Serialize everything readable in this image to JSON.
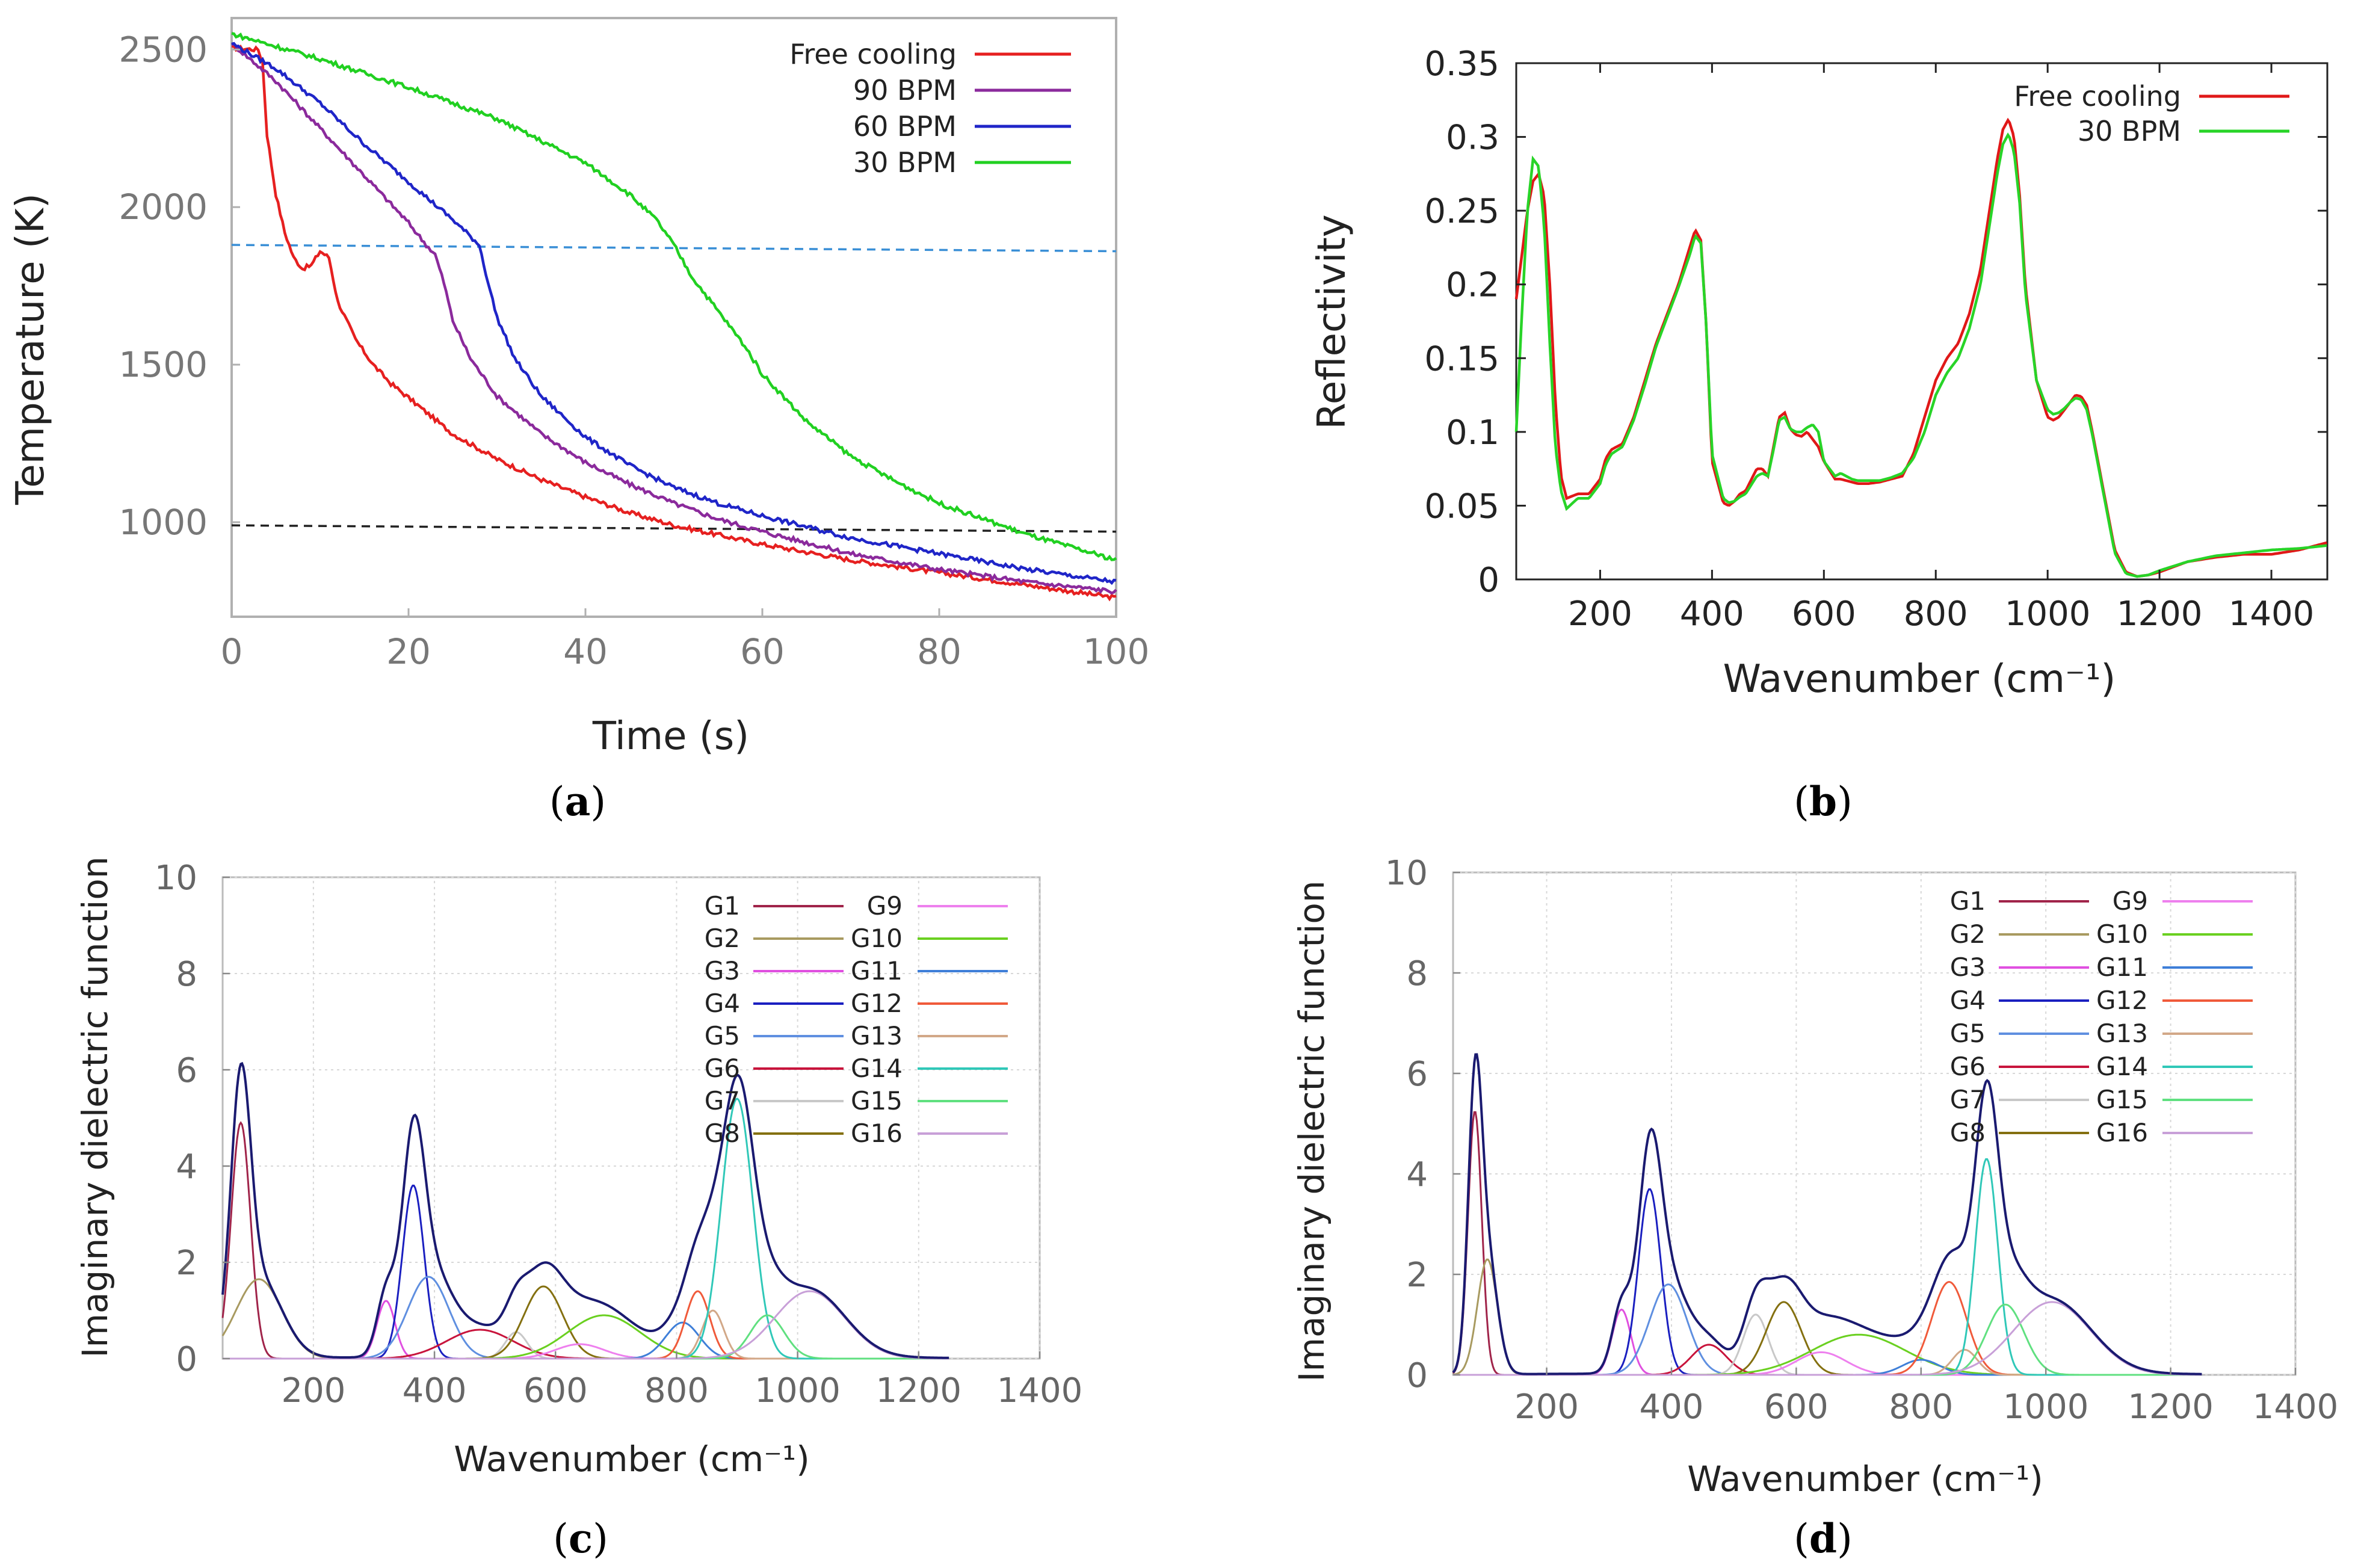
{
  "charts": {
    "a": {
      "caption_letter": "a",
      "title": "",
      "xlabel": "Time (s)",
      "ylabel": "Temperature (K)",
      "xticks": [
        "0",
        "20",
        "40",
        "60",
        "80",
        "100"
      ],
      "yticks": [
        "1000",
        "1500",
        "2000",
        "2500"
      ],
      "legend": [
        "Free cooling",
        "90 BPM",
        "60 BPM",
        "30 BPM"
      ]
    },
    "b": {
      "caption_letter": "b",
      "xlabel": "Wavenumber (cm⁻¹)",
      "ylabel": "Reflectivity",
      "xticks": [
        "200",
        "400",
        "600",
        "800",
        "1000",
        "1200",
        "1400"
      ],
      "yticks": [
        "0",
        "0.05",
        "0.1",
        "0.15",
        "0.2",
        "0.25",
        "0.3",
        "0.35"
      ],
      "legend": [
        "Free cooling",
        "30 BPM"
      ]
    },
    "c": {
      "caption_letter": "c",
      "xlabel": "Wavenumber (cm⁻¹)",
      "ylabel": "Imaginary dielectric function",
      "xticks": [
        "200",
        "400",
        "600",
        "800",
        "1000",
        "1200",
        "1400"
      ],
      "yticks": [
        "0",
        "2",
        "4",
        "6",
        "8",
        "10"
      ],
      "legend": [
        "G1",
        "G2",
        "G3",
        "G4",
        "G5",
        "G6",
        "G7",
        "G8",
        "G9",
        "G10",
        "G11",
        "G12",
        "G13",
        "G14",
        "G15",
        "G16"
      ]
    },
    "d": {
      "caption_letter": "d",
      "xlabel": "Wavenumber (cm⁻¹)",
      "ylabel": "Imaginary dielectric function",
      "xticks": [
        "200",
        "400",
        "600",
        "800",
        "1000",
        "1200",
        "1400"
      ],
      "yticks": [
        "0",
        "2",
        "4",
        "6",
        "8",
        "10"
      ],
      "legend": [
        "G1",
        "G2",
        "G3",
        "G4",
        "G5",
        "G6",
        "G7",
        "G8",
        "G9",
        "G10",
        "G11",
        "G12",
        "G13",
        "G14",
        "G15",
        "G16"
      ]
    }
  },
  "chart_data": [
    {
      "id": "a",
      "type": "line",
      "title": "",
      "xlabel": "Time (s)",
      "ylabel": "Temperature (K)",
      "xlim": [
        0,
        100
      ],
      "ylim": [
        700,
        2600
      ],
      "grid": false,
      "legend_position": "top-right",
      "series": [
        {
          "name": "Free cooling",
          "color": "#e62020",
          "x": [
            0,
            3,
            3.5,
            4,
            5,
            6,
            7,
            8,
            9,
            10,
            11,
            12,
            14,
            16,
            18,
            20,
            25,
            30,
            35,
            40,
            45,
            50,
            60,
            70,
            80,
            90,
            100
          ],
          "y": [
            2505,
            2500,
            2460,
            2230,
            2040,
            1920,
            1840,
            1805,
            1815,
            1860,
            1840,
            1700,
            1580,
            1500,
            1440,
            1395,
            1280,
            1200,
            1135,
            1080,
            1030,
            990,
            930,
            880,
            840,
            800,
            760
          ]
        },
        {
          "name": "90 BPM",
          "color": "#8b2a9c",
          "x": [
            0,
            5,
            10,
            15,
            20,
            22,
            23,
            24,
            25,
            27,
            30,
            35,
            40,
            45,
            50,
            55,
            60,
            70,
            80,
            90,
            100
          ],
          "y": [
            2520,
            2400,
            2250,
            2100,
            1950,
            1880,
            1850,
            1760,
            1640,
            1520,
            1400,
            1280,
            1190,
            1120,
            1060,
            1010,
            970,
            900,
            850,
            810,
            780
          ]
        },
        {
          "name": "60 BPM",
          "color": "#1f25c8",
          "x": [
            0,
            5,
            10,
            15,
            20,
            25,
            28,
            29,
            30,
            32,
            35,
            40,
            45,
            50,
            55,
            60,
            70,
            80,
            90,
            100
          ],
          "y": [
            2520,
            2440,
            2330,
            2200,
            2080,
            1960,
            1880,
            1760,
            1650,
            1520,
            1400,
            1270,
            1180,
            1110,
            1060,
            1020,
            950,
            900,
            850,
            810
          ]
        },
        {
          "name": "30 BPM",
          "color": "#21d021",
          "x": [
            0,
            10,
            20,
            30,
            40,
            45,
            48,
            50,
            52,
            55,
            58,
            60,
            65,
            70,
            75,
            80,
            90,
            100
          ],
          "y": [
            2550,
            2470,
            2380,
            2280,
            2140,
            2040,
            1960,
            1880,
            1780,
            1670,
            1560,
            1470,
            1320,
            1210,
            1130,
            1060,
            960,
            880
          ]
        }
      ],
      "reference_lines": [
        {
          "name": "upper dashed",
          "color": "#3a8fd6",
          "y_start": 1880,
          "y_end": 1860
        },
        {
          "name": "lower dashed",
          "color": "#222222",
          "y_start": 990,
          "y_end": 970
        }
      ]
    },
    {
      "id": "b",
      "type": "line",
      "xlabel": "Wavenumber (cm⁻¹)",
      "ylabel": "Reflectivity",
      "xlim": [
        50,
        1500
      ],
      "ylim": [
        0,
        0.35
      ],
      "grid": false,
      "legend_position": "top-right",
      "series": [
        {
          "name": "Free cooling",
          "color": "#e01818",
          "x": [
            50,
            60,
            70,
            80,
            90,
            100,
            110,
            120,
            130,
            140,
            160,
            180,
            200,
            210,
            220,
            240,
            260,
            280,
            300,
            320,
            340,
            360,
            370,
            380,
            390,
            400,
            420,
            430,
            440,
            450,
            460,
            480,
            490,
            500,
            510,
            520,
            530,
            540,
            550,
            560,
            570,
            580,
            590,
            600,
            620,
            630,
            640,
            650,
            660,
            680,
            700,
            720,
            740,
            760,
            780,
            800,
            820,
            840,
            860,
            880,
            900,
            910,
            920,
            930,
            940,
            950,
            960,
            980,
            1000,
            1010,
            1020,
            1030,
            1040,
            1050,
            1060,
            1070,
            1080,
            1100,
            1120,
            1140,
            1160,
            1180,
            1200,
            1250,
            1300,
            1350,
            1400,
            1450,
            1500
          ],
          "y": [
            0.19,
            0.22,
            0.25,
            0.27,
            0.275,
            0.26,
            0.2,
            0.12,
            0.07,
            0.055,
            0.058,
            0.058,
            0.068,
            0.082,
            0.088,
            0.092,
            0.11,
            0.135,
            0.16,
            0.18,
            0.2,
            0.225,
            0.237,
            0.23,
            0.17,
            0.08,
            0.052,
            0.05,
            0.053,
            0.058,
            0.06,
            0.075,
            0.075,
            0.07,
            0.09,
            0.11,
            0.113,
            0.102,
            0.098,
            0.097,
            0.1,
            0.095,
            0.09,
            0.08,
            0.068,
            0.068,
            0.067,
            0.066,
            0.065,
            0.065,
            0.066,
            0.068,
            0.07,
            0.085,
            0.11,
            0.135,
            0.15,
            0.16,
            0.18,
            0.21,
            0.26,
            0.285,
            0.305,
            0.312,
            0.3,
            0.26,
            0.2,
            0.135,
            0.11,
            0.108,
            0.11,
            0.115,
            0.12,
            0.125,
            0.124,
            0.118,
            0.1,
            0.06,
            0.02,
            0.005,
            0.002,
            0.003,
            0.005,
            0.012,
            0.015,
            0.017,
            0.017,
            0.02,
            0.025
          ]
        },
        {
          "name": "30 BPM",
          "color": "#28d428",
          "x": [
            50,
            60,
            70,
            80,
            90,
            100,
            110,
            120,
            130,
            140,
            160,
            180,
            200,
            210,
            220,
            240,
            260,
            280,
            300,
            320,
            340,
            360,
            370,
            380,
            390,
            400,
            420,
            430,
            440,
            450,
            460,
            480,
            490,
            500,
            510,
            520,
            530,
            540,
            550,
            560,
            570,
            580,
            590,
            600,
            620,
            630,
            640,
            650,
            660,
            680,
            700,
            720,
            740,
            760,
            780,
            800,
            820,
            840,
            860,
            880,
            900,
            910,
            920,
            930,
            940,
            950,
            960,
            980,
            1000,
            1010,
            1020,
            1030,
            1040,
            1050,
            1060,
            1070,
            1080,
            1100,
            1120,
            1140,
            1160,
            1180,
            1200,
            1250,
            1300,
            1350,
            1400,
            1450,
            1500
          ],
          "y": [
            0.1,
            0.18,
            0.25,
            0.285,
            0.28,
            0.24,
            0.16,
            0.09,
            0.06,
            0.048,
            0.055,
            0.055,
            0.065,
            0.078,
            0.085,
            0.09,
            0.108,
            0.132,
            0.158,
            0.178,
            0.198,
            0.22,
            0.233,
            0.228,
            0.17,
            0.085,
            0.055,
            0.052,
            0.053,
            0.056,
            0.058,
            0.07,
            0.072,
            0.07,
            0.088,
            0.108,
            0.11,
            0.102,
            0.1,
            0.1,
            0.103,
            0.105,
            0.1,
            0.08,
            0.07,
            0.072,
            0.07,
            0.068,
            0.067,
            0.067,
            0.067,
            0.069,
            0.072,
            0.082,
            0.1,
            0.125,
            0.14,
            0.15,
            0.17,
            0.2,
            0.25,
            0.275,
            0.295,
            0.302,
            0.29,
            0.255,
            0.195,
            0.135,
            0.115,
            0.112,
            0.113,
            0.116,
            0.12,
            0.123,
            0.122,
            0.115,
            0.098,
            0.058,
            0.018,
            0.004,
            0.002,
            0.003,
            0.006,
            0.012,
            0.016,
            0.018,
            0.02,
            0.021,
            0.023
          ]
        }
      ]
    },
    {
      "id": "c",
      "type": "line",
      "xlabel": "Wavenumber (cm⁻¹)",
      "ylabel": "Imaginary dielectric function",
      "xlim": [
        50,
        1400
      ],
      "ylim": [
        0,
        10
      ],
      "grid": true,
      "legend_position": "top-right",
      "components": [
        {
          "name": "G1",
          "center": 80,
          "amp": 4.9,
          "sigma": 16,
          "color": "#a0244a"
        },
        {
          "name": "G2",
          "center": 110,
          "amp": 1.65,
          "sigma": 38,
          "color": "#a89a60"
        },
        {
          "name": "G3",
          "center": 320,
          "amp": 1.2,
          "sigma": 15,
          "color": "#e050e0"
        },
        {
          "name": "G4",
          "center": 365,
          "amp": 3.6,
          "sigma": 18,
          "color": "#1a1fc0"
        },
        {
          "name": "G5",
          "center": 390,
          "amp": 1.7,
          "sigma": 34,
          "color": "#5f8fe0"
        },
        {
          "name": "G6",
          "center": 475,
          "amp": 0.6,
          "sigma": 55,
          "color": "#c8143c"
        },
        {
          "name": "G7",
          "center": 535,
          "amp": 0.55,
          "sigma": 18,
          "color": "#c8c8c8"
        },
        {
          "name": "G8",
          "center": 580,
          "amp": 1.5,
          "sigma": 32,
          "color": "#847010"
        },
        {
          "name": "G9",
          "center": 640,
          "amp": 0.3,
          "sigma": 40,
          "color": "#ee80ee"
        },
        {
          "name": "G10",
          "center": 680,
          "amp": 0.9,
          "sigma": 60,
          "color": "#6ad020"
        },
        {
          "name": "G11",
          "center": 810,
          "amp": 0.75,
          "sigma": 28,
          "color": "#3f7fd8"
        },
        {
          "name": "G12",
          "center": 835,
          "amp": 1.4,
          "sigma": 20,
          "color": "#f05a3a"
        },
        {
          "name": "G13",
          "center": 860,
          "amp": 1.0,
          "sigma": 18,
          "color": "#d2a888"
        },
        {
          "name": "G14",
          "center": 900,
          "amp": 5.4,
          "sigma": 26,
          "color": "#30c8b8"
        },
        {
          "name": "G15",
          "center": 950,
          "amp": 0.9,
          "sigma": 28,
          "color": "#60e080"
        },
        {
          "name": "G16",
          "center": 1020,
          "amp": 1.4,
          "sigma": 58,
          "color": "#c8a0d8"
        }
      ],
      "total": {
        "name": "Sum",
        "color": "#1a1a70"
      }
    },
    {
      "id": "d",
      "type": "line",
      "xlabel": "Wavenumber (cm⁻¹)",
      "ylabel": "Imaginary dielectric function",
      "xlim": [
        50,
        1400
      ],
      "ylim": [
        0,
        10
      ],
      "grid": true,
      "legend_position": "top-right",
      "components": [
        {
          "name": "G1",
          "center": 85,
          "amp": 5.25,
          "sigma": 11,
          "color": "#a0244a"
        },
        {
          "name": "G2",
          "center": 105,
          "amp": 2.3,
          "sigma": 16,
          "color": "#a89a60"
        },
        {
          "name": "G3",
          "center": 320,
          "amp": 1.3,
          "sigma": 15,
          "color": "#e050e0"
        },
        {
          "name": "G4",
          "center": 365,
          "amp": 3.7,
          "sigma": 18,
          "color": "#1a1fc0"
        },
        {
          "name": "G5",
          "center": 395,
          "amp": 1.8,
          "sigma": 30,
          "color": "#5f8fe0"
        },
        {
          "name": "G6",
          "center": 460,
          "amp": 0.6,
          "sigma": 28,
          "color": "#c8143c"
        },
        {
          "name": "G7",
          "center": 535,
          "amp": 1.2,
          "sigma": 20,
          "color": "#c8c8c8"
        },
        {
          "name": "G8",
          "center": 580,
          "amp": 1.45,
          "sigma": 28,
          "color": "#847010"
        },
        {
          "name": "G9",
          "center": 640,
          "amp": 0.45,
          "sigma": 40,
          "color": "#ee80ee"
        },
        {
          "name": "G10",
          "center": 700,
          "amp": 0.8,
          "sigma": 75,
          "color": "#6ad020"
        },
        {
          "name": "G11",
          "center": 800,
          "amp": 0.3,
          "sigma": 30,
          "color": "#3f7fd8"
        },
        {
          "name": "G12",
          "center": 845,
          "amp": 1.85,
          "sigma": 28,
          "color": "#f05a3a"
        },
        {
          "name": "G13",
          "center": 870,
          "amp": 0.5,
          "sigma": 20,
          "color": "#d2a888"
        },
        {
          "name": "G14",
          "center": 905,
          "amp": 4.3,
          "sigma": 18,
          "color": "#30c8b8"
        },
        {
          "name": "G15",
          "center": 935,
          "amp": 1.4,
          "sigma": 30,
          "color": "#60e080"
        },
        {
          "name": "G16",
          "center": 1010,
          "amp": 1.45,
          "sigma": 62,
          "color": "#c8a0d8"
        }
      ],
      "total": {
        "name": "Sum",
        "color": "#1a1a70"
      }
    }
  ]
}
